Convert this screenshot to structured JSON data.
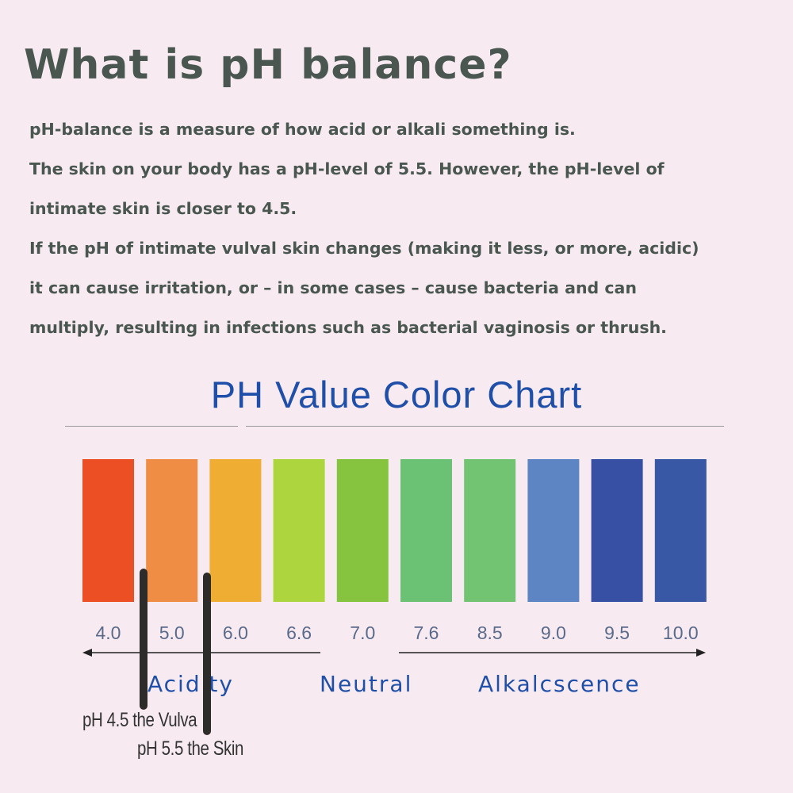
{
  "heading": "What is pH balance?",
  "paragraph_lines": [
    "pH-balance is a measure of how acid or alkali something is.",
    "The skin on your body has a pH-level of 5.5. However, the pH-level of",
    "intimate skin is closer to 4.5.",
    "If the pH of intimate vulval skin changes (making it less, or more, acidic)",
    "it can cause irritation, or – in some cases – cause bacteria and can",
    "multiply, resulting in infections such as bacterial vaginosis or thrush."
  ],
  "chart_data": {
    "type": "bar",
    "title": "PH Value Color Chart",
    "categories": [
      "4.0",
      "5.0",
      "6.0",
      "6.6",
      "7.0",
      "7.6",
      "8.5",
      "9.0",
      "9.5",
      "10.0"
    ],
    "values": [
      4.0,
      5.0,
      6.0,
      6.6,
      7.0,
      7.6,
      8.5,
      9.0,
      9.5,
      10.0
    ],
    "colors": [
      "#ec4f24",
      "#ef8d44",
      "#efad33",
      "#add53e",
      "#86c43f",
      "#6bc275",
      "#72c473",
      "#5d85c4",
      "#3850a3",
      "#3858a6"
    ],
    "zones": {
      "acidity": "Acidity",
      "neutral": "Neutral",
      "alkaline": "Alkalcscence"
    },
    "annotations": {
      "vulva": {
        "text": "pH 4.5 the Vulva",
        "value": 4.5
      },
      "skin": {
        "text": "pH 5.5 the Skin",
        "value": 5.5
      }
    },
    "marker_color": "#2e2b2b",
    "label_color": "#1f4fa8",
    "tick_color": "#5a6a8a"
  }
}
